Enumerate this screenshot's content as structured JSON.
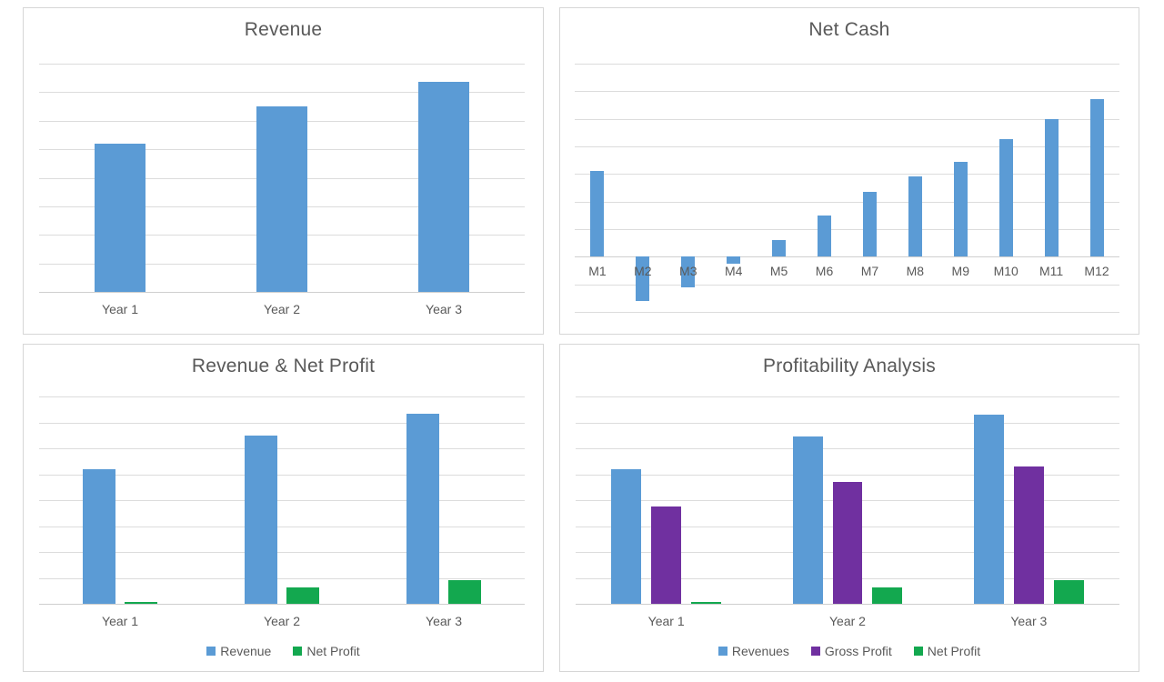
{
  "colors": {
    "bar_blue": "#5B9BD5",
    "bar_purple": "#7030A0",
    "bar_green": "#13A84F",
    "grid": "#DCDCDC",
    "axis": "#CFCFCF",
    "text": "#595959",
    "panel_border": "#D6D6D6",
    "background": "#FFFFFF"
  },
  "chart_data": [
    {
      "type": "bar",
      "title": "Revenue",
      "categories": [
        "Year 1",
        "Year 2",
        "Year 3"
      ],
      "series": [
        {
          "name": "Revenue",
          "color": "#5B9BD5",
          "values": [
            5.2,
            6.5,
            7.35
          ]
        }
      ],
      "ylim": [
        0,
        8
      ],
      "value_axis_labels": "none",
      "grid": true,
      "legend": "none"
    },
    {
      "type": "bar",
      "title": "Net Cash",
      "categories": [
        "M1",
        "M2",
        "M3",
        "M4",
        "M5",
        "M6",
        "M7",
        "M8",
        "M9",
        "M10",
        "M11",
        "M12"
      ],
      "series": [
        {
          "name": "Net Cash",
          "color": "#5B9BD5",
          "values": [
            3.1,
            -1.6,
            -1.1,
            -0.25,
            0.6,
            1.5,
            2.35,
            2.9,
            3.45,
            4.25,
            5.0,
            5.7
          ]
        }
      ],
      "ylim": [
        -2,
        7
      ],
      "value_axis_labels": "none",
      "grid": true,
      "legend": "none"
    },
    {
      "type": "bar",
      "title": "Revenue & Net Profit",
      "categories": [
        "Year 1",
        "Year 2",
        "Year 3"
      ],
      "series": [
        {
          "name": "Revenue",
          "color": "#5B9BD5",
          "values": [
            5.2,
            6.5,
            7.35
          ]
        },
        {
          "name": "Net Profit",
          "color": "#13A84F",
          "values": [
            0.07,
            0.62,
            0.9
          ]
        }
      ],
      "ylim": [
        0,
        8
      ],
      "value_axis_labels": "none",
      "grid": true,
      "legend": "bottom"
    },
    {
      "type": "bar",
      "title": "Profitability Analysis",
      "categories": [
        "Year 1",
        "Year 2",
        "Year 3"
      ],
      "series": [
        {
          "name": "Revenues",
          "color": "#5B9BD5",
          "values": [
            5.2,
            6.45,
            7.3
          ]
        },
        {
          "name": "Gross Profit",
          "color": "#7030A0",
          "values": [
            3.75,
            4.7,
            5.3
          ]
        },
        {
          "name": "Net Profit",
          "color": "#13A84F",
          "values": [
            0.08,
            0.62,
            0.9
          ]
        }
      ],
      "ylim": [
        0,
        8
      ],
      "value_axis_labels": "none",
      "grid": true,
      "legend": "bottom"
    }
  ]
}
